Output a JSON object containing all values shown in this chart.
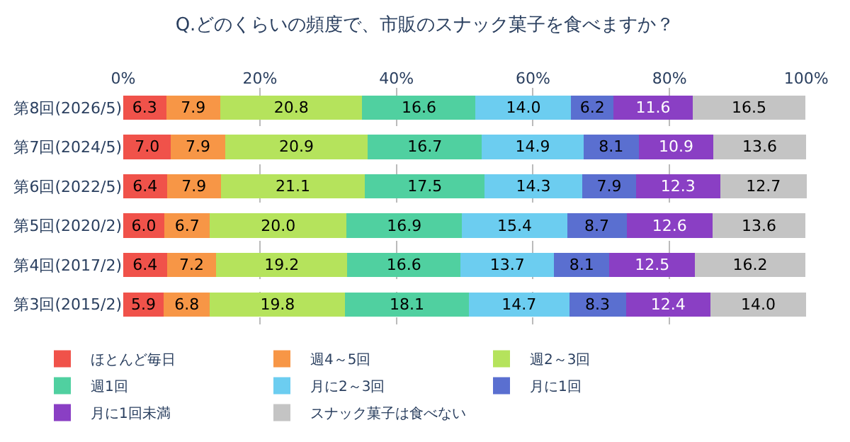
{
  "chart_data": {
    "type": "bar",
    "orientation": "horizontal",
    "stacked": true,
    "title": "Q.どのくらいの頻度で、市販のスナック菓子を食べますか？",
    "categories": [
      "第8回(2026/5)",
      "第7回(2024/5)",
      "第6回(2022/5)",
      "第5回(2020/2)",
      "第4回(2017/2)",
      "第3回(2015/2)"
    ],
    "series": [
      {
        "name": "ほとんど毎日",
        "color": "#f0524a",
        "values": [
          6.3,
          7.0,
          6.4,
          6.0,
          6.4,
          5.9
        ],
        "value_labels": [
          "6.3",
          "7.0",
          "6.4",
          "6.0",
          "6.4",
          "5.9"
        ]
      },
      {
        "name": "週4～5回",
        "color": "#f79646",
        "values": [
          7.9,
          7.9,
          7.9,
          6.7,
          7.2,
          6.8
        ],
        "value_labels": [
          "7.9",
          "7.9",
          "7.9",
          "6.7",
          "7.2",
          "6.8"
        ]
      },
      {
        "name": "週2～3回",
        "color": "#b5e35c",
        "values": [
          20.8,
          20.9,
          21.1,
          20.0,
          19.2,
          19.8
        ],
        "value_labels": [
          "20.8",
          "20.9",
          "21.1",
          "20.0",
          "19.2",
          "19.8"
        ]
      },
      {
        "name": "週1回",
        "color": "#50d0a0",
        "values": [
          16.6,
          16.7,
          17.5,
          16.9,
          16.6,
          18.1
        ],
        "value_labels": [
          "16.6",
          "16.7",
          "17.5",
          "16.9",
          "16.6",
          "18.1"
        ]
      },
      {
        "name": "月に2～3回",
        "color": "#6ccdf0",
        "values": [
          14.0,
          14.9,
          14.3,
          15.4,
          13.7,
          14.7
        ],
        "value_labels": [
          "14.0",
          "14.9",
          "14.3",
          "15.4",
          "13.7",
          "14.7"
        ]
      },
      {
        "name": "月に1回",
        "color": "#5a6fd0",
        "values": [
          6.2,
          8.1,
          7.9,
          8.7,
          8.1,
          8.3
        ],
        "value_labels": [
          "6.2",
          "8.1",
          "7.9",
          "8.7",
          "8.1",
          "8.3"
        ]
      },
      {
        "name": "月に1回未満",
        "color": "#8a3fc4",
        "values": [
          11.6,
          10.9,
          12.3,
          12.6,
          12.5,
          12.4
        ],
        "value_labels": [
          "11.6",
          "10.9",
          "12.3",
          "12.6",
          "12.5",
          "12.4"
        ]
      },
      {
        "name": "スナック菓子は食べない",
        "color": "#c4c4c4",
        "values": [
          16.5,
          13.6,
          12.7,
          13.6,
          16.2,
          14.0
        ],
        "value_labels": [
          "16.5",
          "13.6",
          "12.7",
          "13.6",
          "16.2",
          "14.0"
        ]
      }
    ],
    "xlim": [
      0,
      100.2
    ],
    "xticks": [
      {
        "value": 0,
        "label": "0%"
      },
      {
        "value": 20,
        "label": "20%"
      },
      {
        "value": 40,
        "label": "40%"
      },
      {
        "value": 60,
        "label": "60%"
      },
      {
        "value": 80,
        "label": "80%"
      },
      {
        "value": 100,
        "label": "100%"
      }
    ],
    "grid": "x",
    "legend": "bottom"
  }
}
